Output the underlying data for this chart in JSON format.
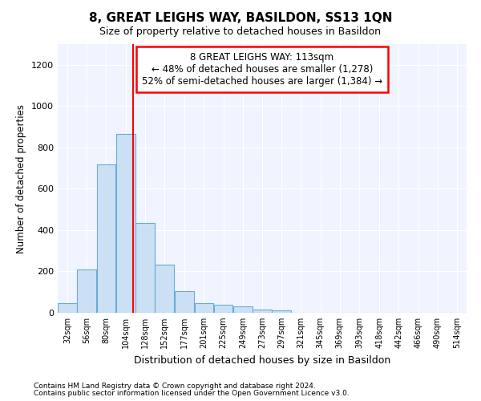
{
  "title": "8, GREAT LEIGHS WAY, BASILDON, SS13 1QN",
  "subtitle": "Size of property relative to detached houses in Basildon",
  "xlabel": "Distribution of detached houses by size in Basildon",
  "ylabel": "Number of detached properties",
  "footnote1": "Contains HM Land Registry data © Crown copyright and database right 2024.",
  "footnote2": "Contains public sector information licensed under the Open Government Licence v3.0.",
  "annotation_line1": "8 GREAT LEIGHS WAY: 113sqm",
  "annotation_line2": "← 48% of detached houses are smaller (1,278)",
  "annotation_line3": "52% of semi-detached houses are larger (1,384) →",
  "bar_color": "#cce0f5",
  "bar_edge_color": "#6aaad4",
  "vline_color": "red",
  "vline_x": 113,
  "categories": [
    "32sqm",
    "56sqm",
    "80sqm",
    "104sqm",
    "128sqm",
    "152sqm",
    "177sqm",
    "201sqm",
    "225sqm",
    "249sqm",
    "273sqm",
    "297sqm",
    "321sqm",
    "345sqm",
    "369sqm",
    "393sqm",
    "418sqm",
    "442sqm",
    "466sqm",
    "490sqm",
    "514sqm"
  ],
  "bin_centers": [
    32,
    56,
    80,
    104,
    128,
    152,
    177,
    201,
    225,
    249,
    273,
    297,
    321,
    345,
    369,
    393,
    418,
    442,
    466,
    490,
    514
  ],
  "bin_width": 24,
  "values": [
    47,
    210,
    717,
    865,
    435,
    233,
    103,
    47,
    38,
    30,
    15,
    10,
    0,
    0,
    0,
    0,
    0,
    0,
    0,
    0,
    0
  ],
  "ylim": [
    0,
    1300
  ],
  "yticks": [
    0,
    200,
    400,
    600,
    800,
    1000,
    1200
  ],
  "xlim_left": 20,
  "xlim_right": 526,
  "figsize": [
    6.0,
    5.0
  ],
  "dpi": 100,
  "bg_color": "#f0f4ff"
}
